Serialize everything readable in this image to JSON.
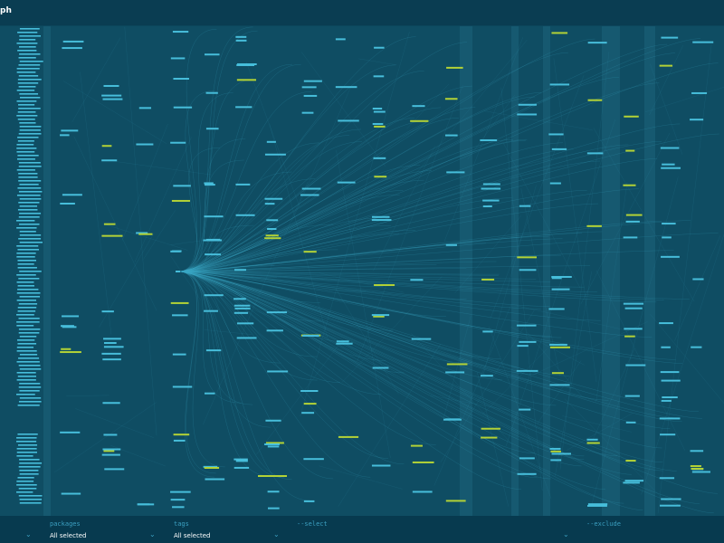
{
  "header": {
    "title": "ph"
  },
  "filters": [
    {
      "label": "packages",
      "value": "All selected"
    },
    {
      "label": "tags",
      "value": "All selected"
    },
    {
      "label": "--select"
    },
    {
      "label": "--exclude"
    }
  ]
}
